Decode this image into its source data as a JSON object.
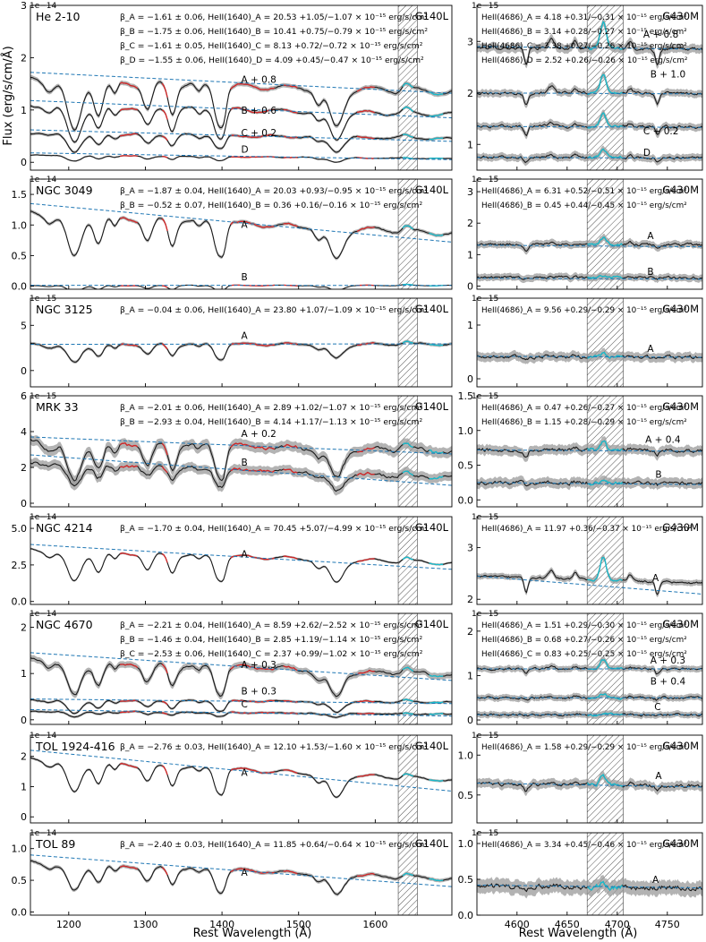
{
  "figure": {
    "ylabel": "Flux (erg/s/cm/Å)",
    "xlabel_left": "Rest Wavelength (Å)",
    "xlabel_right": "Rest Wavelength (Å)"
  },
  "chart_data": [
    {
      "type": "line",
      "panel": "left",
      "row": 0,
      "object": "He 2-10",
      "grating": "G140L",
      "scale": "1e−14",
      "xlim": [
        1150,
        1700
      ],
      "ylim": [
        -0.15,
        3.0
      ],
      "yticks": [
        0,
        1,
        2,
        3
      ],
      "xticks": [
        1200,
        1300,
        1400,
        1500,
        1600
      ],
      "show_xticklabels": false,
      "hatch": [
        1630,
        1655
      ],
      "annotations": [
        "β_A = −1.61 ± 0.06, HeII(1640)_A = 20.53 +1.05/−1.07 × 10⁻¹⁵ erg/s/cm²",
        "β_B = −1.75 ± 0.06, HeII(1640)_B = 10.41 +0.75/−0.79 × 10⁻¹⁵ erg/s/cm²",
        "β_C = −1.61 ± 0.05, HeII(1640)_C = 8.13 +0.72/−0.72 × 10⁻¹⁵ erg/s/cm²",
        "β_D = −1.55 ± 0.06, HeII(1640)_D = 4.09 +0.45/−0.47 × 10⁻¹⁵ erg/s/cm²"
      ],
      "series": [
        {
          "name": "A + 0.8",
          "level": 1.35,
          "cont_start": 1.72,
          "cont_end": 1.32,
          "label_x": 1425,
          "label_y": 1.52,
          "noise": 0.03
        },
        {
          "name": "B + 0.6",
          "level": 0.95,
          "cont_start": 1.18,
          "cont_end": 0.85,
          "label_x": 1425,
          "label_y": 0.93,
          "noise": 0.02
        },
        {
          "name": "C + 0.2",
          "level": 0.48,
          "cont_start": 0.62,
          "cont_end": 0.4,
          "label_x": 1425,
          "label_y": 0.5,
          "noise": 0.02
        },
        {
          "name": "D",
          "level": 0.08,
          "cont_start": 0.18,
          "cont_end": 0.05,
          "label_x": 1425,
          "label_y": 0.18,
          "noise": 0.01
        }
      ]
    },
    {
      "type": "line",
      "panel": "right",
      "row": 0,
      "grating": "G430M",
      "scale": "1e−15",
      "xlim": [
        4560,
        4785
      ],
      "ylim": [
        0.5,
        3.7
      ],
      "yticks": [
        1,
        2,
        3
      ],
      "xticks": [
        4600,
        4650,
        4700,
        4750
      ],
      "show_xticklabels": false,
      "hatch": [
        4670,
        4706
      ],
      "annotations": [
        "HeII(4686)_A = 4.18 +0.31/−0.31 × 10⁻¹⁵ erg/s/cm²",
        "HeII(4686)_B = 3.14 +0.28/−0.27 × 10⁻¹⁵ erg/s/cm²",
        "HeII(4686)_C = 3.38 +0.27/−0.26 × 10⁻¹⁵ erg/s/cm²",
        "HeII(4686)_D = 2.52 +0.26/−0.26 × 10⁻¹⁵ erg/s/cm²"
      ],
      "series": [
        {
          "name": "A + 0.8",
          "level": 2.85,
          "cont_start": 2.9,
          "cont_end": 2.85,
          "label_x": 4726,
          "label_y": 3.07,
          "noise": 0.06
        },
        {
          "name": "B + 1.0",
          "level": 2.0,
          "cont_start": 2.0,
          "cont_end": 1.98,
          "label_x": 4733,
          "label_y": 2.3,
          "noise": 0.05
        },
        {
          "name": "C + 0.2",
          "level": 1.35,
          "cont_start": 1.35,
          "cont_end": 1.33,
          "label_x": 4726,
          "label_y": 1.2,
          "noise": 0.05
        },
        {
          "name": "D",
          "level": 0.75,
          "cont_start": 0.75,
          "cont_end": 0.73,
          "label_x": 4726,
          "label_y": 0.78,
          "noise": 0.05
        }
      ]
    },
    {
      "type": "line",
      "panel": "left",
      "row": 1,
      "object": "NGC 3049",
      "grating": "G140L",
      "scale": "1e−14",
      "xlim": [
        1150,
        1700
      ],
      "ylim": [
        -0.05,
        1.75
      ],
      "yticks": [
        0.0,
        0.5,
        1.0,
        1.5
      ],
      "xticks": [
        1200,
        1300,
        1400,
        1500,
        1600
      ],
      "show_xticklabels": false,
      "hatch": [
        1630,
        1655
      ],
      "annotations": [
        "β_A = −1.87 ± 0.04, HeII(1640)_A = 20.03 +0.93/−0.95 × 10⁻¹⁵ erg/s/cm²",
        "β_B = −0.52 ± 0.07, HeII(1640)_B = 0.36 +0.16/−0.16 × 10⁻¹⁵ erg/s/cm²"
      ],
      "series": [
        {
          "name": "A",
          "level": 0.95,
          "cont_start": 1.35,
          "cont_end": 0.72,
          "label_x": 1425,
          "label_y": 0.95,
          "noise": 0.02
        },
        {
          "name": "B",
          "level": 0.01,
          "cont_start": 0.015,
          "cont_end": 0.012,
          "label_x": 1425,
          "label_y": 0.1,
          "noise": 0.002
        }
      ]
    },
    {
      "type": "line",
      "panel": "right",
      "row": 1,
      "grating": "G430M",
      "scale": "1e−15",
      "xlim": [
        4560,
        4785
      ],
      "ylim": [
        -0.1,
        3.4
      ],
      "yticks": [
        0,
        1,
        2,
        3
      ],
      "xticks": [
        4600,
        4650,
        4700,
        4750
      ],
      "show_xticklabels": false,
      "hatch": [
        4670,
        4706
      ],
      "annotations": [
        "HeII(4686)_A = 6.31 +0.52/−0.51 × 10⁻¹⁵ erg/s/cm²",
        "HeII(4686)_B = 0.45 +0.44/−0.45 × 10⁻¹⁵ erg/s/cm²"
      ],
      "series": [
        {
          "name": "A",
          "level": 1.35,
          "cont_start": 1.3,
          "cont_end": 1.25,
          "label_x": 4730,
          "label_y": 1.5,
          "noise": 0.08
        },
        {
          "name": "B",
          "level": 0.3,
          "cont_start": 0.25,
          "cont_end": 0.22,
          "label_x": 4730,
          "label_y": 0.35,
          "noise": 0.08
        }
      ]
    },
    {
      "type": "line",
      "panel": "left",
      "row": 2,
      "object": "NGC 3125",
      "grating": "G140L",
      "scale": "1e−15",
      "xlim": [
        1150,
        1700
      ],
      "ylim": [
        -1.8,
        8.0
      ],
      "yticks": [
        0,
        5
      ],
      "xticks": [
        1200,
        1300,
        1400,
        1500,
        1600
      ],
      "show_xticklabels": false,
      "hatch": [
        1630,
        1655
      ],
      "annotations": [
        "β_A = −0.04 ± 0.06, HeII(1640)_A = 23.80 +1.07/−1.09 × 10⁻¹⁵ erg/s/cm²"
      ],
      "series": [
        {
          "name": "A",
          "level": 2.9,
          "cont_start": 2.9,
          "cont_end": 2.95,
          "label_x": 1425,
          "label_y": 3.5,
          "noise": 0.12
        }
      ]
    },
    {
      "type": "line",
      "panel": "right",
      "row": 2,
      "grating": "G430M",
      "scale": "1e−15",
      "xlim": [
        4560,
        4785
      ],
      "ylim": [
        -0.15,
        1.5
      ],
      "yticks": [
        0,
        1
      ],
      "xticks": [
        4600,
        4650,
        4700,
        4750
      ],
      "show_xticklabels": false,
      "hatch": [
        4670,
        4706
      ],
      "annotations": [
        "HeII(4686)_A = 9.56 +0.29/−0.29 × 10⁻¹⁵ erg/s/cm²"
      ],
      "series": [
        {
          "name": "A",
          "level": 0.4,
          "cont_start": 0.42,
          "cont_end": 0.4,
          "label_x": 4730,
          "label_y": 0.5,
          "noise": 0.06
        }
      ]
    },
    {
      "type": "line",
      "panel": "left",
      "row": 3,
      "object": "MRK 33",
      "grating": "G140L",
      "scale": "1e−15",
      "xlim": [
        1150,
        1700
      ],
      "ylim": [
        -0.2,
        6.0
      ],
      "yticks": [
        0,
        2,
        4,
        6
      ],
      "xticks": [
        1200,
        1300,
        1400,
        1500,
        1600
      ],
      "show_xticklabels": false,
      "hatch": [
        1630,
        1655
      ],
      "annotations": [
        "β_A = −2.01 ± 0.06, HeII(1640)_A = 2.89 +1.02/−1.07 × 10⁻¹⁵ erg/s/cm²",
        "β_B = −2.93 ± 0.04, HeII(1640)_B = 4.14 +1.17/−1.13 × 10⁻¹⁵ erg/s/cm²"
      ],
      "series": [
        {
          "name": "A + 0.2",
          "level": 3.05,
          "cont_start": 3.7,
          "cont_end": 2.75,
          "label_x": 1425,
          "label_y": 3.7,
          "noise": 0.2
        },
        {
          "name": "B",
          "level": 1.7,
          "cont_start": 2.7,
          "cont_end": 1.0,
          "label_x": 1425,
          "label_y": 2.1,
          "noise": 0.18
        }
      ]
    },
    {
      "type": "line",
      "panel": "right",
      "row": 3,
      "grating": "G430M",
      "scale": "1e−15",
      "xlim": [
        4560,
        4785
      ],
      "ylim": [
        -0.1,
        1.5
      ],
      "yticks": [
        0.0,
        0.5,
        1.0,
        1.5
      ],
      "xticks": [
        4600,
        4650,
        4700,
        4750
      ],
      "show_xticklabels": false,
      "hatch": [
        4670,
        4706
      ],
      "annotations": [
        "HeII(4686)_A = 0.47 +0.26/−0.27 × 10⁻¹⁵ erg/s/cm²",
        "HeII(4686)_B = 1.15 +0.28/−0.29 × 10⁻¹⁵ erg/s/cm²"
      ],
      "series": [
        {
          "name": "A + 0.4",
          "level": 0.72,
          "cont_start": 0.72,
          "cont_end": 0.7,
          "label_x": 4728,
          "label_y": 0.82,
          "noise": 0.05
        },
        {
          "name": "B",
          "level": 0.25,
          "cont_start": 0.25,
          "cont_end": 0.22,
          "label_x": 4738,
          "label_y": 0.32,
          "noise": 0.05
        }
      ]
    },
    {
      "type": "line",
      "panel": "left",
      "row": 4,
      "object": "NGC 4214",
      "grating": "G140L",
      "scale": "1e−14",
      "xlim": [
        1150,
        1700
      ],
      "ylim": [
        -0.2,
        5.8
      ],
      "yticks": [
        0.0,
        2.5,
        5.0
      ],
      "xticks": [
        1200,
        1300,
        1400,
        1500,
        1600
      ],
      "show_xticklabels": false,
      "hatch": [
        1630,
        1655
      ],
      "annotations": [
        "β_A = −1.70 ± 0.04, HeII(1640)_A = 70.45 +5.07/−4.99 × 10⁻¹⁵ erg/s/cm²"
      ],
      "series": [
        {
          "name": "A",
          "level": 2.9,
          "cont_start": 3.9,
          "cont_end": 2.2,
          "label_x": 1425,
          "label_y": 3.0,
          "noise": 0.05
        }
      ]
    },
    {
      "type": "line",
      "panel": "right",
      "row": 4,
      "grating": "G430M",
      "scale": "1e−15",
      "xlim": [
        4560,
        4785
      ],
      "ylim": [
        1.9,
        3.6
      ],
      "yticks": [
        2,
        3
      ],
      "xticks": [
        4600,
        4650,
        4700,
        4750
      ],
      "show_xticklabels": false,
      "hatch": [
        4670,
        4706
      ],
      "annotations": [
        "HeII(4686)_A = 11.97 +0.36/−0.37 × 10⁻¹⁵ erg/s/cm²"
      ],
      "series": [
        {
          "name": "A",
          "level": 2.45,
          "cont_start": 2.45,
          "cont_end": 2.1,
          "label_x": 4735,
          "label_y": 2.35,
          "noise": 0.04
        }
      ]
    },
    {
      "type": "line",
      "panel": "left",
      "row": 5,
      "object": "NGC 4670",
      "grating": "G140L",
      "scale": "1e−14",
      "xlim": [
        1150,
        1700
      ],
      "ylim": [
        -0.1,
        2.3
      ],
      "yticks": [
        0,
        1,
        2
      ],
      "xticks": [
        1200,
        1300,
        1400,
        1500,
        1600
      ],
      "show_xticklabels": false,
      "hatch": [
        1630,
        1655
      ],
      "annotations": [
        "β_A = −2.21 ± 0.04, HeII(1640)_A = 8.59 +2.62/−2.52 × 10⁻¹⁵ erg/s/cm²",
        "β_B = −1.46 ± 0.04, HeII(1640)_B = 2.85 +1.19/−1.14 × 10⁻¹⁵ erg/s/cm²",
        "β_C = −2.53 ± 0.06, HeII(1640)_C = 2.37 +0.99/−1.02 × 10⁻¹⁵ erg/s/cm²"
      ],
      "series": [
        {
          "name": "A + 0.3",
          "level": 1.05,
          "cont_start": 1.45,
          "cont_end": 0.85,
          "label_x": 1425,
          "label_y": 1.12,
          "noise": 0.05
        },
        {
          "name": "B + 0.3",
          "level": 0.4,
          "cont_start": 0.45,
          "cont_end": 0.35,
          "label_x": 1425,
          "label_y": 0.55,
          "noise": 0.02
        },
        {
          "name": "C",
          "level": 0.14,
          "cont_start": 0.22,
          "cont_end": 0.08,
          "label_x": 1425,
          "label_y": 0.27,
          "noise": 0.02
        }
      ]
    },
    {
      "type": "line",
      "panel": "right",
      "row": 5,
      "grating": "G430M",
      "scale": "1e−15",
      "xlim": [
        4560,
        4785
      ],
      "ylim": [
        -0.1,
        2.4
      ],
      "yticks": [
        0,
        1,
        2
      ],
      "xticks": [
        4600,
        4650,
        4700,
        4750
      ],
      "show_xticklabels": false,
      "hatch": [
        4670,
        4706
      ],
      "annotations": [
        "HeII(4686)_A = 1.51 +0.29/−0.30 × 10⁻¹⁵ erg/s/cm²",
        "HeII(4686)_B = 0.68 +0.27/−0.26 × 10⁻¹⁵ erg/s/cm²",
        "HeII(4686)_C = 0.83 +0.25/−0.25 × 10⁻¹⁵ erg/s/cm²"
      ],
      "series": [
        {
          "name": "A + 0.3",
          "level": 1.15,
          "cont_start": 1.15,
          "cont_end": 1.15,
          "label_x": 4733,
          "label_y": 1.27,
          "noise": 0.05
        },
        {
          "name": "B + 0.4",
          "level": 0.5,
          "cont_start": 0.5,
          "cont_end": 0.5,
          "label_x": 4733,
          "label_y": 0.8,
          "noise": 0.05
        },
        {
          "name": "C",
          "level": 0.12,
          "cont_start": 0.12,
          "cont_end": 0.12,
          "label_x": 4737,
          "label_y": 0.22,
          "noise": 0.05
        }
      ]
    },
    {
      "type": "line",
      "panel": "left",
      "row": 6,
      "object": "TOL 1924-416",
      "grating": "G140L",
      "scale": "1e−14",
      "xlim": [
        1150,
        1700
      ],
      "ylim": [
        -0.2,
        2.7
      ],
      "yticks": [
        0,
        1,
        2
      ],
      "xticks": [
        1200,
        1300,
        1400,
        1500,
        1600
      ],
      "show_xticklabels": false,
      "hatch": [
        1630,
        1655
      ],
      "annotations": [
        "β_A = −2.76 ± 0.03, HeII(1640)_A = 12.10 +1.53/−1.60 × 10⁻¹⁵ erg/s/cm²"
      ],
      "series": [
        {
          "name": "A",
          "level": 1.45,
          "cont_start": 2.2,
          "cont_end": 0.85,
          "label_x": 1425,
          "label_y": 1.35,
          "noise": 0.03
        }
      ]
    },
    {
      "type": "line",
      "panel": "right",
      "row": 6,
      "grating": "G430M",
      "scale": "1e−15",
      "xlim": [
        4560,
        4785
      ],
      "ylim": [
        0.15,
        1.25
      ],
      "yticks": [
        0.5,
        1.0
      ],
      "xticks": [
        4600,
        4650,
        4700,
        4750
      ],
      "show_xticklabels": false,
      "hatch": [
        4670,
        4706
      ],
      "annotations": [
        "HeII(4686)_A = 1.58 +0.29/−0.29 × 10⁻¹⁵ erg/s/cm²"
      ],
      "series": [
        {
          "name": "A",
          "level": 0.62,
          "cont_start": 0.65,
          "cont_end": 0.6,
          "label_x": 4738,
          "label_y": 0.7,
          "noise": 0.04
        }
      ]
    },
    {
      "type": "line",
      "panel": "left",
      "row": 7,
      "object": "TOL 89",
      "grating": "G140L",
      "scale": "1e−14",
      "xlim": [
        1150,
        1700
      ],
      "ylim": [
        -0.05,
        1.25
      ],
      "yticks": [
        0.0,
        0.5,
        1.0
      ],
      "xticks": [
        1200,
        1300,
        1400,
        1500,
        1600
      ],
      "show_xticklabels": true,
      "hatch": [
        1630,
        1655
      ],
      "annotations": [
        "β_A = −2.40 ± 0.03, HeII(1640)_A = 11.85 +0.64/−0.64 × 10⁻¹⁵ erg/s/cm²"
      ],
      "series": [
        {
          "name": "A",
          "level": 0.6,
          "cont_start": 0.9,
          "cont_end": 0.4,
          "label_x": 1425,
          "label_y": 0.57,
          "noise": 0.02
        }
      ]
    },
    {
      "type": "line",
      "panel": "right",
      "row": 7,
      "grating": "G430M",
      "scale": "1e−15",
      "xlim": [
        4560,
        4785
      ],
      "ylim": [
        0.0,
        1.15
      ],
      "yticks": [
        0.0,
        0.5,
        1.0
      ],
      "xticks": [
        4600,
        4650,
        4700,
        4750
      ],
      "show_xticklabels": true,
      "hatch": [
        4670,
        4706
      ],
      "annotations": [
        "HeII(4686)_A = 3.34 +0.45/−0.46 × 10⁻¹⁵ erg/s/cm²"
      ],
      "series": [
        {
          "name": "A",
          "level": 0.38,
          "cont_start": 0.42,
          "cont_end": 0.38,
          "label_x": 4735,
          "label_y": 0.45,
          "noise": 0.07
        }
      ]
    }
  ]
}
